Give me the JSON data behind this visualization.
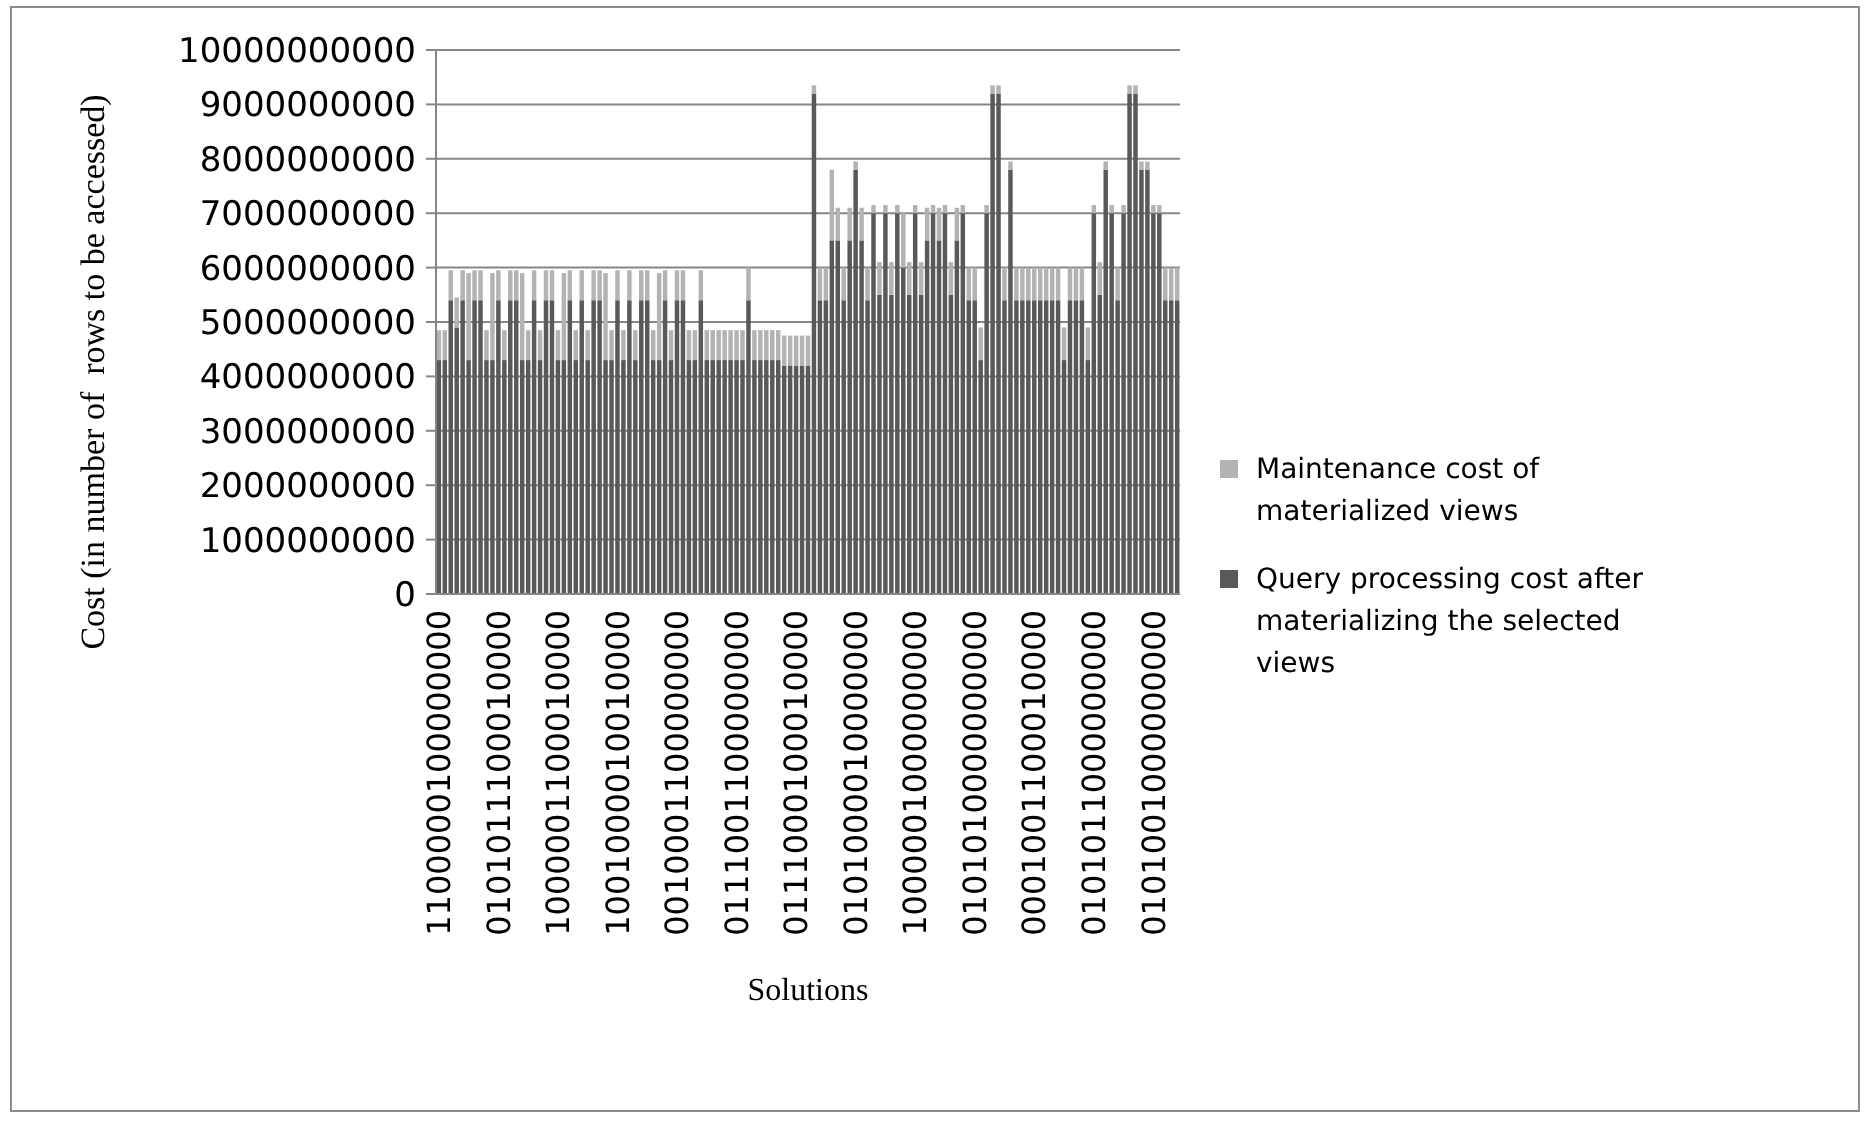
{
  "chart_data": {
    "type": "bar",
    "stacked": true,
    "xlabel": "Solutions",
    "ylabel": "Cost (in number of  rows to be accessed)",
    "categories": [
      "1100000100000000",
      null,
      null,
      null,
      null,
      null,
      null,
      null,
      null,
      null,
      "0101011100010000",
      null,
      null,
      null,
      null,
      null,
      null,
      null,
      null,
      null,
      "1000001100010000",
      null,
      null,
      null,
      null,
      null,
      null,
      null,
      null,
      null,
      "1001000010010000",
      null,
      null,
      null,
      null,
      null,
      null,
      null,
      null,
      null,
      "0010001100000000",
      null,
      null,
      null,
      null,
      null,
      null,
      null,
      null,
      null,
      "0111001100000000",
      null,
      null,
      null,
      null,
      null,
      null,
      null,
      null,
      null,
      "0111000100010000",
      null,
      null,
      null,
      null,
      null,
      null,
      null,
      null,
      null,
      "0101000010000000",
      null,
      null,
      null,
      null,
      null,
      null,
      null,
      null,
      null,
      "1000001000000000",
      null,
      null,
      null,
      null,
      null,
      null,
      null,
      null,
      null,
      "0101010000000000",
      null,
      null,
      null,
      null,
      null,
      null,
      null,
      null,
      null,
      "0001001100010000",
      null,
      null,
      null,
      null,
      null,
      null,
      null,
      null,
      null,
      "0101011000000000",
      null,
      null,
      null,
      null,
      null,
      null,
      null,
      null,
      null,
      "0101001000000000",
      null,
      null,
      null,
      null
    ],
    "series": [
      {
        "name": "Query processing cost after materializing the selected views",
        "color": "#595959",
        "values": [
          4300000000,
          4300000000,
          5400000000,
          4900000000,
          5400000000,
          4300000000,
          5400000000,
          5400000000,
          4300000000,
          4300000000,
          5400000000,
          4300000000,
          5400000000,
          5400000000,
          4300000000,
          4300000000,
          5400000000,
          4300000000,
          5400000000,
          5400000000,
          4300000000,
          4300000000,
          5400000000,
          4300000000,
          5400000000,
          4300000000,
          5400000000,
          5400000000,
          4300000000,
          4300000000,
          5400000000,
          4300000000,
          5400000000,
          4300000000,
          5400000000,
          5400000000,
          4300000000,
          4300000000,
          5400000000,
          4300000000,
          5400000000,
          5400000000,
          4300000000,
          4300000000,
          5400000000,
          4300000000,
          4300000000,
          4300000000,
          4300000000,
          4300000000,
          4300000000,
          4300000000,
          5400000000,
          4300000000,
          4300000000,
          4300000000,
          4300000000,
          4300000000,
          4200000000,
          4200000000,
          4200000000,
          4200000000,
          4200000000,
          9200000000,
          5400000000,
          5400000000,
          6500000000,
          6500000000,
          5400000000,
          6500000000,
          7800000000,
          6500000000,
          5400000000,
          7000000000,
          5500000000,
          7000000000,
          5500000000,
          7000000000,
          6000000000,
          5500000000,
          7000000000,
          5500000000,
          6500000000,
          7000000000,
          6500000000,
          7000000000,
          5500000000,
          6500000000,
          7000000000,
          5400000000,
          5400000000,
          4300000000,
          7000000000,
          9200000000,
          9200000000,
          5400000000,
          7800000000,
          5400000000,
          5400000000,
          5400000000,
          5400000000,
          5400000000,
          5400000000,
          5400000000,
          5400000000,
          4300000000,
          5400000000,
          5400000000,
          5400000000,
          4300000000,
          7000000000,
          5500000000,
          7800000000,
          7000000000,
          5400000000,
          7000000000,
          9200000000,
          9200000000,
          7800000000,
          7800000000,
          7000000000,
          7000000000,
          5400000000,
          5400000000,
          5400000000
        ]
      },
      {
        "name": "Maintenance cost of materialized views",
        "color": "#b3b3b3",
        "values": [
          550000000,
          550000000,
          550000000,
          550000000,
          550000000,
          1600000000,
          550000000,
          550000000,
          550000000,
          1600000000,
          550000000,
          550000000,
          550000000,
          550000000,
          1600000000,
          550000000,
          550000000,
          550000000,
          550000000,
          550000000,
          550000000,
          1600000000,
          550000000,
          550000000,
          550000000,
          550000000,
          550000000,
          550000000,
          1600000000,
          550000000,
          550000000,
          550000000,
          550000000,
          550000000,
          550000000,
          550000000,
          550000000,
          1600000000,
          550000000,
          550000000,
          550000000,
          550000000,
          550000000,
          550000000,
          550000000,
          550000000,
          550000000,
          550000000,
          550000000,
          550000000,
          550000000,
          550000000,
          600000000,
          550000000,
          550000000,
          550000000,
          550000000,
          550000000,
          550000000,
          550000000,
          550000000,
          550000000,
          550000000,
          150000000,
          600000000,
          600000000,
          1300000000,
          600000000,
          600000000,
          600000000,
          150000000,
          600000000,
          600000000,
          150000000,
          600000000,
          150000000,
          600000000,
          150000000,
          1000000000,
          600000000,
          150000000,
          600000000,
          600000000,
          150000000,
          600000000,
          150000000,
          600000000,
          600000000,
          150000000,
          600000000,
          600000000,
          600000000,
          150000000,
          150000000,
          150000000,
          600000000,
          150000000,
          600000000,
          600000000,
          600000000,
          600000000,
          600000000,
          600000000,
          600000000,
          600000000,
          600000000,
          600000000,
          600000000,
          600000000,
          600000000,
          150000000,
          600000000,
          150000000,
          150000000,
          600000000,
          150000000,
          150000000,
          150000000,
          150000000,
          150000000,
          150000000,
          150000000,
          600000000,
          600000000,
          600000000
        ]
      }
    ],
    "ylim": [
      0,
      10000000000
    ],
    "yticks": [
      0,
      1000000000,
      2000000000,
      3000000000,
      4000000000,
      5000000000,
      6000000000,
      7000000000,
      8000000000,
      9000000000,
      10000000000
    ],
    "grid": "y",
    "legend": "right"
  }
}
